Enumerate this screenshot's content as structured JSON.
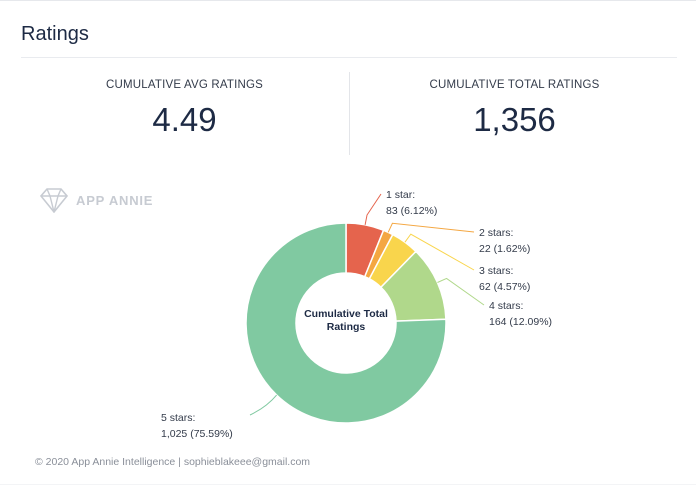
{
  "header": {
    "title": "Ratings"
  },
  "metrics": {
    "avg": {
      "label": "CUMULATIVE AVG RATINGS",
      "value": "4.49"
    },
    "total": {
      "label": "CUMULATIVE TOTAL RATINGS",
      "value": "1,356"
    }
  },
  "watermark": {
    "text": "APP ANNIE",
    "icon": "diamond-logo-icon"
  },
  "footer": {
    "text": "© 2020 App Annie Intelligence | sophieblakeee@gmail.com"
  },
  "colors": {
    "star1": "#e5644d",
    "star2": "#f4a742",
    "star3": "#f9d54c",
    "star4": "#b0d88b",
    "star5": "#80c9a1"
  },
  "chart_data": {
    "type": "pie",
    "donut": true,
    "center_label": [
      "Cumulative Total",
      "Ratings"
    ],
    "slices": [
      {
        "name": "1 star:",
        "value": 83,
        "value_label": "83 (6.12%)",
        "color": "#e5644d"
      },
      {
        "name": "2 stars:",
        "value": 22,
        "value_label": "22 (1.62%)",
        "color": "#f4a742"
      },
      {
        "name": "3 stars:",
        "value": 62,
        "value_label": "62 (4.57%)",
        "color": "#f9d54c"
      },
      {
        "name": "4 stars:",
        "value": 164,
        "value_label": "164 (12.09%)",
        "color": "#b0d88b"
      },
      {
        "name": "5 stars:",
        "value": 1025,
        "value_label": "1,025 (75.59%)",
        "color": "#80c9a1"
      }
    ]
  }
}
